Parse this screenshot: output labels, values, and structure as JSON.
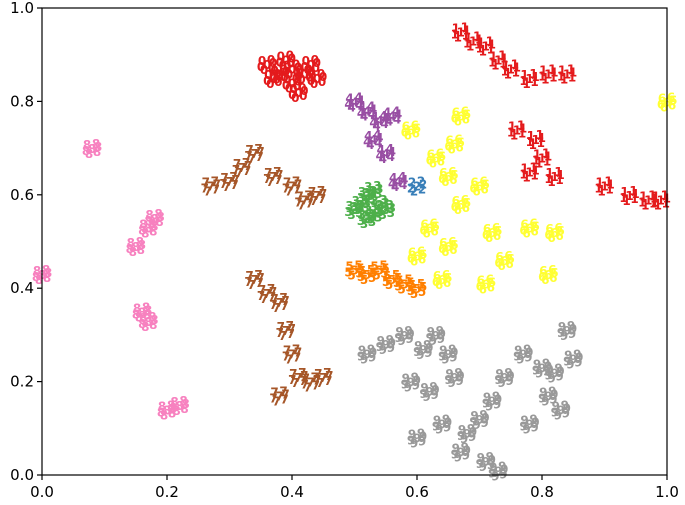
{
  "chart_data": {
    "type": "scatter",
    "title": "",
    "xlabel": "",
    "ylabel": "",
    "xlim": [
      0.0,
      1.0
    ],
    "ylim": [
      0.0,
      1.0
    ],
    "grid": false,
    "x_ticks": [
      "0.0",
      "0.2",
      "0.4",
      "0.6",
      "0.8",
      "1.0"
    ],
    "y_ticks": [
      "0.0",
      "0.2",
      "0.4",
      "0.6",
      "0.8",
      "1.0"
    ],
    "marker": "digit-glyphs",
    "series": [
      {
        "label": "0",
        "color": "#e41a1c",
        "points": [
          [
            0.36,
            0.88
          ],
          [
            0.38,
            0.86
          ],
          [
            0.4,
            0.84
          ],
          [
            0.42,
            0.86
          ],
          [
            0.44,
            0.85
          ],
          [
            0.41,
            0.82
          ],
          [
            0.39,
            0.89
          ],
          [
            0.43,
            0.88
          ],
          [
            0.37,
            0.85
          ],
          [
            0.4,
            0.87
          ]
        ]
      },
      {
        "label": "1",
        "color": "#e41a1c",
        "points": [
          [
            0.67,
            0.95
          ],
          [
            0.69,
            0.93
          ],
          [
            0.71,
            0.92
          ],
          [
            0.73,
            0.89
          ],
          [
            0.75,
            0.87
          ],
          [
            0.78,
            0.85
          ],
          [
            0.81,
            0.86
          ],
          [
            0.84,
            0.86
          ],
          [
            0.76,
            0.74
          ],
          [
            0.79,
            0.72
          ],
          [
            0.8,
            0.68
          ],
          [
            0.78,
            0.65
          ],
          [
            0.82,
            0.64
          ],
          [
            0.9,
            0.62
          ],
          [
            0.94,
            0.6
          ],
          [
            0.97,
            0.59
          ],
          [
            0.99,
            0.59
          ]
        ]
      },
      {
        "label": "2",
        "color": "#377eb8",
        "points": [
          [
            0.6,
            0.62
          ]
        ]
      },
      {
        "label": "3",
        "color": "#4daf4a",
        "points": [
          [
            0.51,
            0.58
          ],
          [
            0.52,
            0.6
          ],
          [
            0.53,
            0.56
          ],
          [
            0.54,
            0.58
          ],
          [
            0.52,
            0.55
          ],
          [
            0.55,
            0.57
          ],
          [
            0.53,
            0.61
          ],
          [
            0.5,
            0.57
          ]
        ]
      },
      {
        "label": "4",
        "color": "#984ea3",
        "points": [
          [
            0.5,
            0.8
          ],
          [
            0.52,
            0.78
          ],
          [
            0.54,
            0.76
          ],
          [
            0.56,
            0.77
          ],
          [
            0.53,
            0.72
          ],
          [
            0.55,
            0.69
          ],
          [
            0.57,
            0.63
          ]
        ]
      },
      {
        "label": "5",
        "color": "#ff7f00",
        "points": [
          [
            0.5,
            0.44
          ],
          [
            0.52,
            0.43
          ],
          [
            0.54,
            0.44
          ],
          [
            0.56,
            0.42
          ],
          [
            0.58,
            0.41
          ],
          [
            0.6,
            0.4
          ]
        ]
      },
      {
        "label": "6",
        "color": "#ffff33",
        "points": [
          [
            0.67,
            0.77
          ],
          [
            0.66,
            0.71
          ],
          [
            0.63,
            0.68
          ],
          [
            0.65,
            0.64
          ],
          [
            0.67,
            0.58
          ],
          [
            0.7,
            0.62
          ],
          [
            0.72,
            0.52
          ],
          [
            0.74,
            0.46
          ],
          [
            0.71,
            0.41
          ],
          [
            0.65,
            0.49
          ],
          [
            0.62,
            0.53
          ],
          [
            0.6,
            0.47
          ],
          [
            0.64,
            0.42
          ],
          [
            0.78,
            0.53
          ],
          [
            0.82,
            0.52
          ],
          [
            0.81,
            0.43
          ],
          [
            0.59,
            0.74
          ],
          [
            1.0,
            0.8
          ]
        ]
      },
      {
        "label": "7",
        "color": "#a65628",
        "points": [
          [
            0.27,
            0.62
          ],
          [
            0.3,
            0.63
          ],
          [
            0.32,
            0.66
          ],
          [
            0.34,
            0.69
          ],
          [
            0.37,
            0.64
          ],
          [
            0.4,
            0.62
          ],
          [
            0.42,
            0.59
          ],
          [
            0.44,
            0.6
          ],
          [
            0.34,
            0.42
          ],
          [
            0.36,
            0.39
          ],
          [
            0.38,
            0.37
          ],
          [
            0.39,
            0.31
          ],
          [
            0.4,
            0.26
          ],
          [
            0.41,
            0.21
          ],
          [
            0.38,
            0.17
          ],
          [
            0.43,
            0.2
          ],
          [
            0.45,
            0.21
          ]
        ]
      },
      {
        "label": "8",
        "color": "#f781bf",
        "points": [
          [
            0.0,
            0.43
          ],
          [
            0.08,
            0.7
          ],
          [
            0.15,
            0.49
          ],
          [
            0.17,
            0.53
          ],
          [
            0.18,
            0.55
          ],
          [
            0.16,
            0.35
          ],
          [
            0.17,
            0.33
          ],
          [
            0.2,
            0.14
          ],
          [
            0.22,
            0.15
          ]
        ]
      },
      {
        "label": "9",
        "color": "#999999",
        "points": [
          [
            0.52,
            0.26
          ],
          [
            0.55,
            0.28
          ],
          [
            0.58,
            0.3
          ],
          [
            0.61,
            0.27
          ],
          [
            0.63,
            0.3
          ],
          [
            0.65,
            0.26
          ],
          [
            0.66,
            0.21
          ],
          [
            0.59,
            0.2
          ],
          [
            0.62,
            0.18
          ],
          [
            0.6,
            0.08
          ],
          [
            0.64,
            0.11
          ],
          [
            0.68,
            0.09
          ],
          [
            0.7,
            0.12
          ],
          [
            0.72,
            0.16
          ],
          [
            0.74,
            0.21
          ],
          [
            0.77,
            0.26
          ],
          [
            0.8,
            0.23
          ],
          [
            0.81,
            0.17
          ],
          [
            0.83,
            0.14
          ],
          [
            0.82,
            0.22
          ],
          [
            0.84,
            0.31
          ],
          [
            0.85,
            0.25
          ],
          [
            0.67,
            0.05
          ],
          [
            0.71,
            0.03
          ],
          [
            0.73,
            0.01
          ],
          [
            0.78,
            0.11
          ]
        ]
      }
    ]
  }
}
